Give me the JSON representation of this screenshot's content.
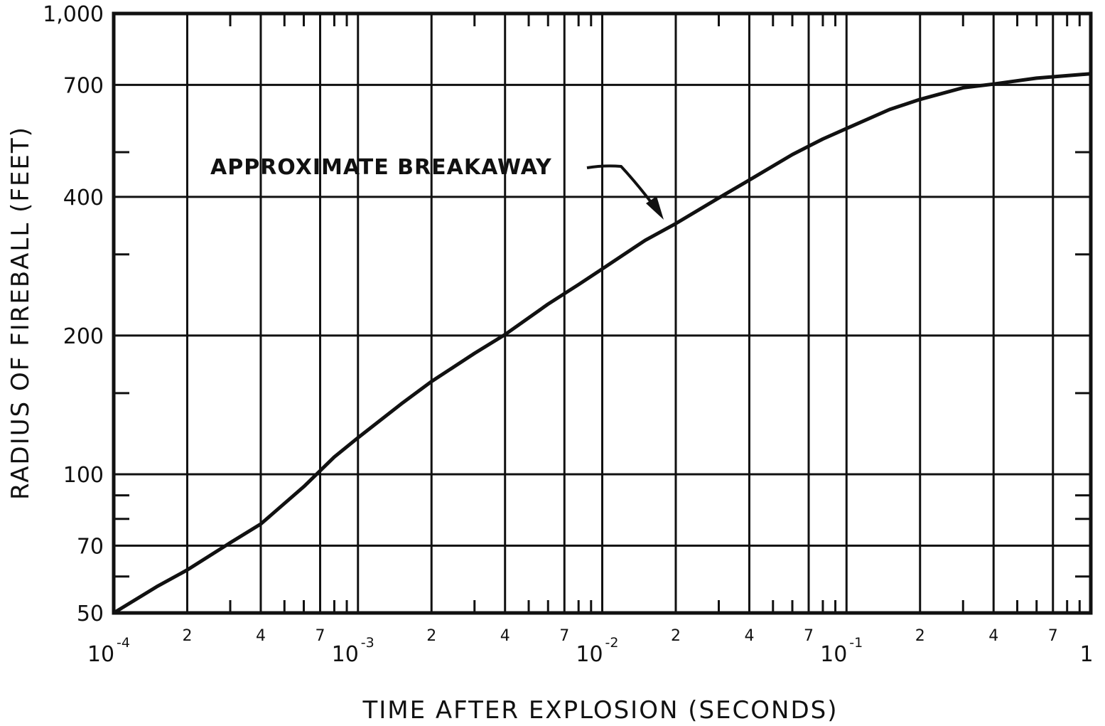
{
  "chart_data": {
    "type": "line",
    "xlabel": "TIME AFTER EXPLOSION (SECONDS)",
    "ylabel": "RADIUS OF FIREBALL (FEET)",
    "xscale": "log",
    "yscale": "log",
    "xlim": [
      0.0001,
      1
    ],
    "ylim": [
      50,
      1000
    ],
    "grid": true,
    "colors": {
      "ink": "#111111",
      "background": "#ffffff"
    },
    "y_ticks": [
      {
        "value": 1000,
        "label": "1,000"
      },
      {
        "value": 700,
        "label": "700"
      },
      {
        "value": 400,
        "label": "400"
      },
      {
        "value": 200,
        "label": "200"
      },
      {
        "value": 100,
        "label": "100"
      },
      {
        "value": 70,
        "label": "70"
      },
      {
        "value": 50,
        "label": "50"
      }
    ],
    "x_decade_ticks": [
      {
        "value": 0.0001,
        "base": "10",
        "exp": "-4"
      },
      {
        "value": 0.001,
        "base": "10",
        "exp": "-3"
      },
      {
        "value": 0.01,
        "base": "10",
        "exp": "-2"
      },
      {
        "value": 0.1,
        "base": "10",
        "exp": "-1"
      },
      {
        "value": 1,
        "base": "1",
        "exp": ""
      }
    ],
    "x_minor_ticks": [
      {
        "value": 0.0002,
        "label": "2"
      },
      {
        "value": 0.0004,
        "label": "4"
      },
      {
        "value": 0.0007,
        "label": "7"
      },
      {
        "value": 0.002,
        "label": "2"
      },
      {
        "value": 0.004,
        "label": "4"
      },
      {
        "value": 0.007,
        "label": "7"
      },
      {
        "value": 0.02,
        "label": "2"
      },
      {
        "value": 0.04,
        "label": "4"
      },
      {
        "value": 0.07,
        "label": "7"
      },
      {
        "value": 0.2,
        "label": "2"
      },
      {
        "value": 0.4,
        "label": "4"
      },
      {
        "value": 0.7,
        "label": "7"
      }
    ],
    "series": [
      {
        "x": [
          0.0001,
          0.00015,
          0.0002,
          0.0003,
          0.0004,
          0.0006,
          0.0008,
          0.001,
          0.0015,
          0.002,
          0.003,
          0.004,
          0.006,
          0.008,
          0.01,
          0.015,
          0.02,
          0.03,
          0.04,
          0.06,
          0.08,
          0.1,
          0.15,
          0.2,
          0.3,
          0.4,
          0.6,
          0.8,
          1
        ],
        "y": [
          50,
          57,
          62,
          71,
          78,
          94,
          109,
          120,
          142,
          159,
          183,
          201,
          234,
          258,
          279,
          322,
          350,
          398,
          435,
          494,
          534,
          563,
          619,
          651,
          690,
          703,
          724,
          733,
          740
        ]
      }
    ],
    "annotations": [
      {
        "text": "APPROXIMATE BREAKAWAY",
        "points_to": {
          "x": 0.0175,
          "y": 360
        }
      }
    ]
  }
}
